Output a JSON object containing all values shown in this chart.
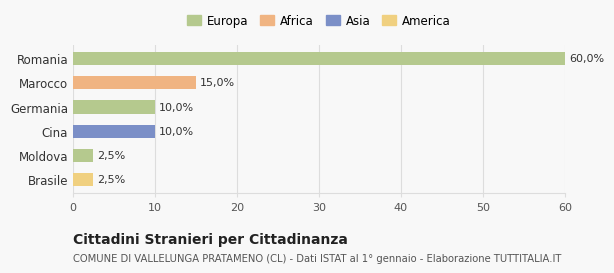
{
  "categories": [
    "Romania",
    "Marocco",
    "Germania",
    "Cina",
    "Moldova",
    "Brasile"
  ],
  "values": [
    60.0,
    15.0,
    10.0,
    10.0,
    2.5,
    2.5
  ],
  "labels": [
    "60,0%",
    "15,0%",
    "10,0%",
    "10,0%",
    "2,5%",
    "2,5%"
  ],
  "colors": [
    "#b5c98e",
    "#f0b482",
    "#b5c98e",
    "#7b8fc7",
    "#b5c98e",
    "#f0d080"
  ],
  "legend_items": [
    {
      "label": "Europa",
      "color": "#b5c98e"
    },
    {
      "label": "Africa",
      "color": "#f0b482"
    },
    {
      "label": "Asia",
      "color": "#7b8fc7"
    },
    {
      "label": "America",
      "color": "#f0d080"
    }
  ],
  "xlim": [
    0,
    60
  ],
  "xticks": [
    0,
    10,
    20,
    30,
    40,
    50,
    60
  ],
  "title": "Cittadini Stranieri per Cittadinanza",
  "subtitle": "COMUNE DI VALLELUNGA PRATAMENO (CL) - Dati ISTAT al 1° gennaio - Elaborazione TUTTITALIA.IT",
  "background_color": "#f8f8f8",
  "grid_color": "#dddddd",
  "bar_height": 0.55
}
